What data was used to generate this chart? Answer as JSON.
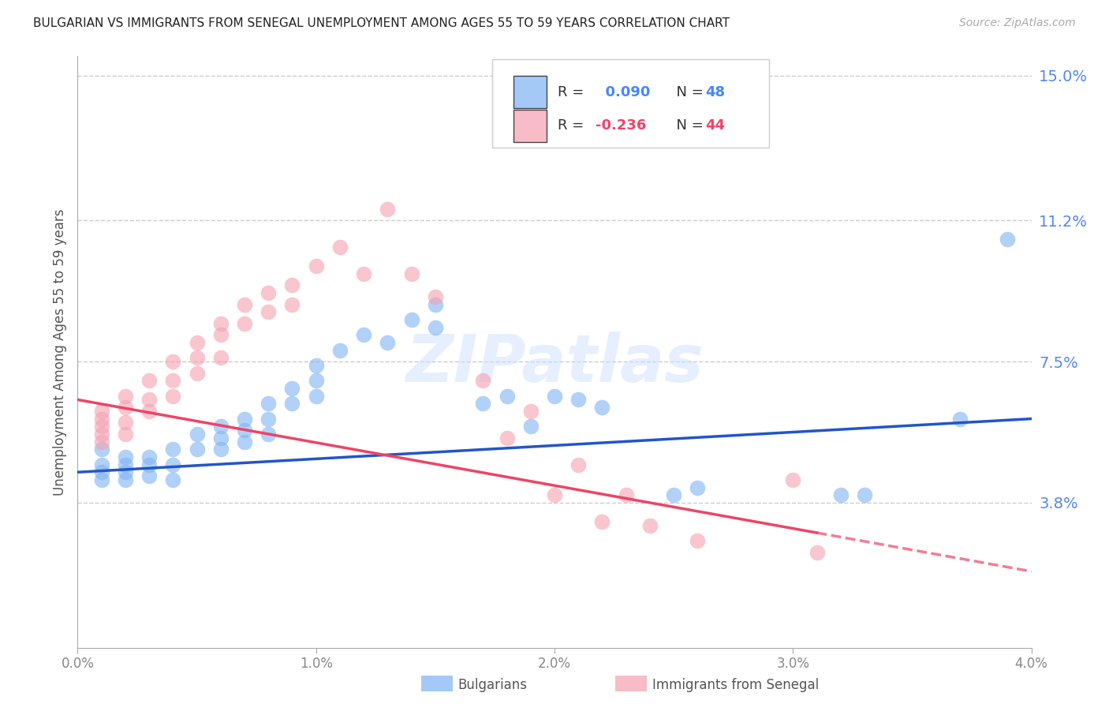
{
  "title": "BULGARIAN VS IMMIGRANTS FROM SENEGAL UNEMPLOYMENT AMONG AGES 55 TO 59 YEARS CORRELATION CHART",
  "source": "Source: ZipAtlas.com",
  "ylabel": "Unemployment Among Ages 55 to 59 years",
  "xmin": 0.0,
  "xmax": 0.04,
  "ymin": 0.0,
  "ymax": 0.155,
  "yticks": [
    0.038,
    0.075,
    0.112,
    0.15
  ],
  "ytick_labels": [
    "3.8%",
    "7.5%",
    "11.2%",
    "15.0%"
  ],
  "xtick_positions": [
    0.0,
    0.01,
    0.02,
    0.03,
    0.04
  ],
  "xtick_labels": [
    "0.0%",
    "1.0%",
    "2.0%",
    "3.0%",
    "4.0%"
  ],
  "legend_blue_r": " 0.090",
  "legend_blue_n": "48",
  "legend_pink_r": "-0.236",
  "legend_pink_n": "44",
  "blue_color": "#7fb3f5",
  "pink_color": "#f5a0b0",
  "trend_blue_color": "#2255cc",
  "trend_pink_color": "#ee4466",
  "background_color": "#ffffff",
  "grid_color": "#cccccc",
  "title_color": "#222222",
  "right_label_color": "#5588ee",
  "axis_color": "#aaaaaa",
  "blue_trend_y0": 0.046,
  "blue_trend_y1": 0.06,
  "pink_trend_y0": 0.065,
  "pink_trend_y1": 0.02,
  "blue_x": [
    0.001,
    0.001,
    0.001,
    0.001,
    0.002,
    0.002,
    0.002,
    0.002,
    0.003,
    0.003,
    0.003,
    0.004,
    0.004,
    0.004,
    0.005,
    0.005,
    0.006,
    0.006,
    0.006,
    0.007,
    0.007,
    0.007,
    0.008,
    0.008,
    0.008,
    0.009,
    0.009,
    0.01,
    0.01,
    0.01,
    0.011,
    0.012,
    0.013,
    0.014,
    0.015,
    0.015,
    0.017,
    0.018,
    0.019,
    0.02,
    0.021,
    0.022,
    0.025,
    0.026,
    0.032,
    0.033,
    0.037,
    0.039
  ],
  "blue_y": [
    0.046,
    0.044,
    0.048,
    0.052,
    0.046,
    0.048,
    0.05,
    0.044,
    0.05,
    0.048,
    0.045,
    0.052,
    0.048,
    0.044,
    0.056,
    0.052,
    0.058,
    0.055,
    0.052,
    0.06,
    0.057,
    0.054,
    0.064,
    0.06,
    0.056,
    0.068,
    0.064,
    0.074,
    0.07,
    0.066,
    0.078,
    0.082,
    0.08,
    0.086,
    0.09,
    0.084,
    0.064,
    0.066,
    0.058,
    0.066,
    0.065,
    0.063,
    0.04,
    0.042,
    0.04,
    0.04,
    0.06,
    0.107
  ],
  "pink_x": [
    0.001,
    0.001,
    0.001,
    0.001,
    0.001,
    0.002,
    0.002,
    0.002,
    0.002,
    0.003,
    0.003,
    0.003,
    0.004,
    0.004,
    0.004,
    0.005,
    0.005,
    0.005,
    0.006,
    0.006,
    0.006,
    0.007,
    0.007,
    0.008,
    0.008,
    0.009,
    0.009,
    0.01,
    0.011,
    0.012,
    0.013,
    0.014,
    0.015,
    0.017,
    0.018,
    0.019,
    0.02,
    0.021,
    0.022,
    0.023,
    0.024,
    0.026,
    0.03,
    0.031
  ],
  "pink_y": [
    0.062,
    0.06,
    0.058,
    0.056,
    0.054,
    0.066,
    0.063,
    0.059,
    0.056,
    0.07,
    0.065,
    0.062,
    0.075,
    0.07,
    0.066,
    0.08,
    0.076,
    0.072,
    0.085,
    0.082,
    0.076,
    0.09,
    0.085,
    0.093,
    0.088,
    0.095,
    0.09,
    0.1,
    0.105,
    0.098,
    0.115,
    0.098,
    0.092,
    0.07,
    0.055,
    0.062,
    0.04,
    0.048,
    0.033,
    0.04,
    0.032,
    0.028,
    0.044,
    0.025
  ],
  "watermark": "ZIPatlas",
  "watermark_color": "#cce0ff"
}
